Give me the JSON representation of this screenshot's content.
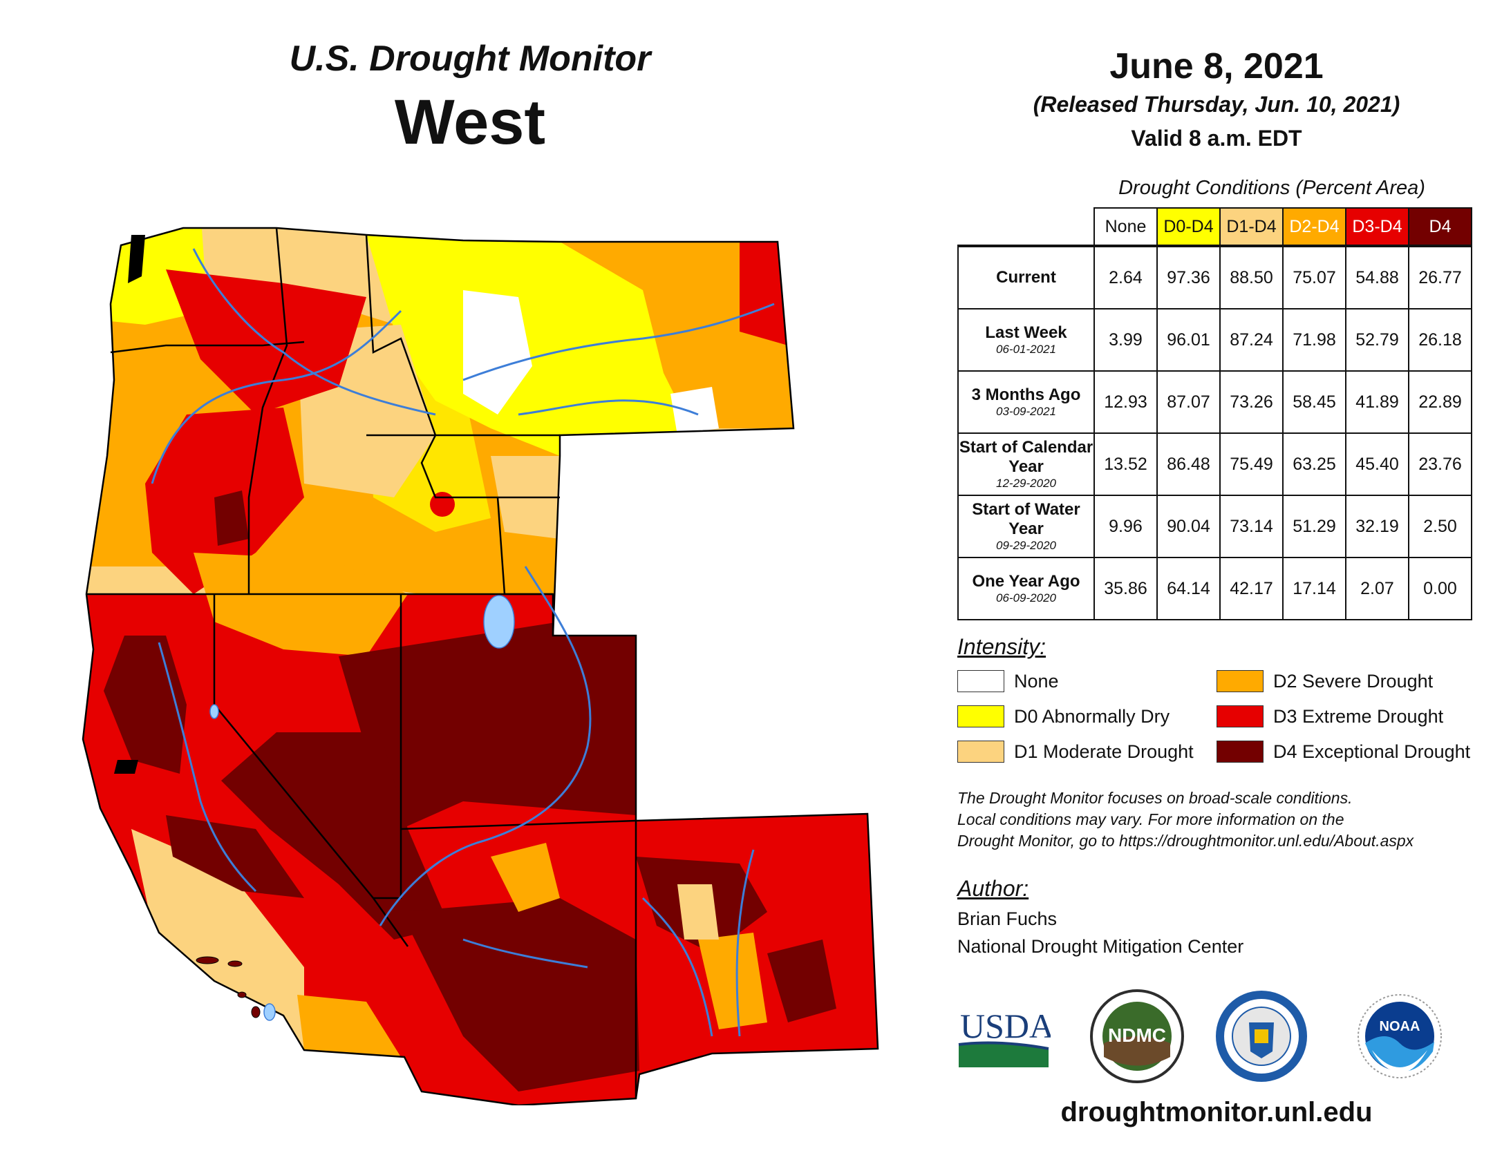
{
  "header": {
    "title": "U.S. Drought Monitor",
    "region": "West",
    "date": "June 8, 2021",
    "released": "(Released Thursday, Jun. 10, 2021)",
    "valid": "Valid 8 a.m. EDT"
  },
  "table": {
    "caption": "Drought Conditions (Percent Area)",
    "columns": [
      "None",
      "D0-D4",
      "D1-D4",
      "D2-D4",
      "D3-D4",
      "D4"
    ],
    "column_colors": [
      "#ffffff",
      "#ffff00",
      "#fcd37f",
      "#ffaa00",
      "#e60000",
      "#730000"
    ],
    "column_text_colors": [
      "#111111",
      "#111111",
      "#111111",
      "#ffffff",
      "#ffffff",
      "#ffffff"
    ],
    "rows": [
      {
        "label": "Current",
        "date": "",
        "values": [
          "2.64",
          "97.36",
          "88.50",
          "75.07",
          "54.88",
          "26.77"
        ]
      },
      {
        "label": "Last Week",
        "date": "06-01-2021",
        "values": [
          "3.99",
          "96.01",
          "87.24",
          "71.98",
          "52.79",
          "26.18"
        ]
      },
      {
        "label": "3 Months Ago",
        "date": "03-09-2021",
        "values": [
          "12.93",
          "87.07",
          "73.26",
          "58.45",
          "41.89",
          "22.89"
        ]
      },
      {
        "label": "Start of Calendar Year",
        "date": "12-29-2020",
        "values": [
          "13.52",
          "86.48",
          "75.49",
          "63.25",
          "45.40",
          "23.76"
        ]
      },
      {
        "label": "Start of Water Year",
        "date": "09-29-2020",
        "values": [
          "9.96",
          "90.04",
          "73.14",
          "51.29",
          "32.19",
          "2.50"
        ]
      },
      {
        "label": "One Year Ago",
        "date": "06-09-2020",
        "values": [
          "35.86",
          "64.14",
          "42.17",
          "17.14",
          "2.07",
          "0.00"
        ]
      }
    ]
  },
  "legend": {
    "title": "Intensity:",
    "items": [
      {
        "label": "None",
        "color": "#ffffff"
      },
      {
        "label": "D0 Abnormally Dry",
        "color": "#ffff00"
      },
      {
        "label": "D1 Moderate Drought",
        "color": "#fcd37f"
      },
      {
        "label": "D2 Severe Drought",
        "color": "#ffaa00"
      },
      {
        "label": "D3 Extreme Drought",
        "color": "#e60000"
      },
      {
        "label": "D4 Exceptional Drought",
        "color": "#730000"
      }
    ]
  },
  "note": {
    "line1": "The Drought Monitor focuses on broad-scale conditions.",
    "line2": "Local conditions may vary. For more information on the",
    "line3": "Drought Monitor, go to https://droughtmonitor.unl.edu/About.aspx"
  },
  "author": {
    "title": "Author:",
    "name": "Brian Fuchs",
    "org": "National Drought Mitigation Center"
  },
  "logos": {
    "usda": "USDA",
    "ndmc": "NDMC",
    "noaa": "NOAA"
  },
  "footer": {
    "url": "droughtmonitor.unl.edu"
  }
}
